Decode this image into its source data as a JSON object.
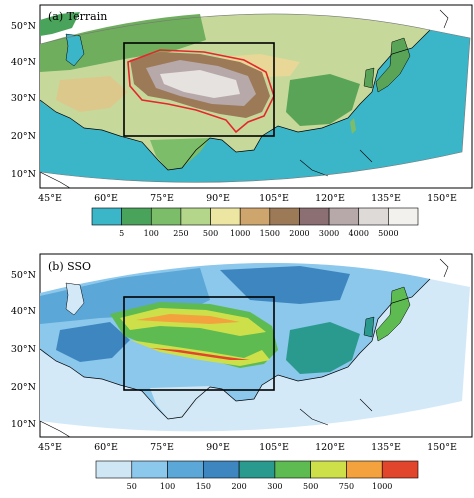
{
  "panels": [
    {
      "id": "terrain",
      "label": "(a) Terrain",
      "lat_ticks": [
        "50°N",
        "40°N",
        "30°N",
        "20°N",
        "10°N"
      ],
      "lon_ticks": [
        "45°E",
        "60°E",
        "75°E",
        "90°E",
        "105°E",
        "120°E",
        "135°E",
        "150°E"
      ],
      "colorbar": {
        "ticks": [
          "5",
          "100",
          "250",
          "500",
          "1000",
          "1500",
          "2000",
          "3000",
          "4000",
          "5000"
        ],
        "colors": [
          "#3bb5c8",
          "#4aa35a",
          "#7cbd6a",
          "#b4d68a",
          "#ece6a2",
          "#cfa56e",
          "#9c7a57",
          "#8c6f72",
          "#b7a9aa",
          "#dedad8",
          "#f3f1ee"
        ]
      }
    },
    {
      "id": "sso",
      "label": "(b) SSO",
      "lat_ticks": [
        "50°N",
        "40°N",
        "30°N",
        "20°N",
        "10°N"
      ],
      "lon_ticks": [
        "45°E",
        "60°E",
        "75°E",
        "90°E",
        "105°E",
        "120°E",
        "135°E",
        "150°E"
      ],
      "colorbar": {
        "ticks": [
          "50",
          "100",
          "150",
          "200",
          "300",
          "500",
          "750",
          "1000"
        ],
        "colors": [
          "#cfe6f5",
          "#8cc7ec",
          "#5aa7d8",
          "#3e86bf",
          "#2a9a8e",
          "#5dbb52",
          "#cde04a",
          "#f3a23d",
          "#e1452b"
        ]
      }
    }
  ],
  "colors": {
    "ocean_terrain": "#3bb5c8",
    "ocean_sso": "#d3e9f7",
    "box": "#000000",
    "tibet_contour": "#e5262b"
  }
}
